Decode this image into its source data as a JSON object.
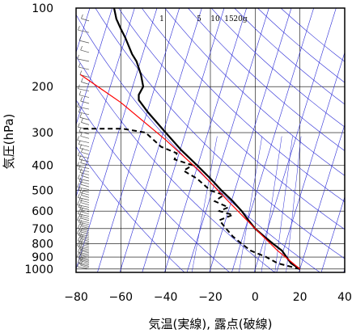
{
  "chart_data": {
    "type": "line",
    "title": "",
    "xlabel": "気温(実線), 露点(破線)",
    "ylabel": "気圧(hPa)",
    "xlim": [
      -80,
      40
    ],
    "ylim": [
      1030,
      100
    ],
    "y_scale": "log",
    "x_ticks": [
      -80,
      -60,
      -40,
      -20,
      0,
      20,
      40
    ],
    "x_tick_labels": [
      "−80",
      "−60",
      "−40",
      "−20",
      "0",
      "20",
      "40"
    ],
    "y_ticks": [
      100,
      200,
      300,
      400,
      500,
      600,
      700,
      800,
      900,
      1000
    ],
    "y_tick_labels": [
      "100",
      "200",
      "300",
      "400",
      "500",
      "600",
      "700",
      "800",
      "900",
      "1000"
    ],
    "grid": true,
    "mixing_ratio_labels": [
      "1",
      "5",
      "10",
      "15",
      "20g"
    ],
    "colors": {
      "temperature": "#000000",
      "dewpoint": "#000000",
      "parcel": "#ff0000",
      "adiabats": "#2b2bd6",
      "grid": "#000000",
      "wind_barbs": "#555555"
    },
    "series": [
      {
        "role": "temperature",
        "style": "solid",
        "points": [
          [
            20,
            1000
          ],
          [
            16,
            950
          ],
          [
            14,
            900
          ],
          [
            12,
            850
          ],
          [
            8,
            800
          ],
          [
            4,
            750
          ],
          [
            0,
            700
          ],
          [
            -3,
            650
          ],
          [
            -6,
            600
          ],
          [
            -10,
            550
          ],
          [
            -15,
            500
          ],
          [
            -20,
            450
          ],
          [
            -26,
            400
          ],
          [
            -33,
            350
          ],
          [
            -40,
            300
          ],
          [
            -48,
            250
          ],
          [
            -52,
            225
          ],
          [
            -52,
            215
          ],
          [
            -50,
            200
          ],
          [
            -51,
            180
          ],
          [
            -53,
            160
          ],
          [
            -55,
            150
          ],
          [
            -58,
            130
          ],
          [
            -60,
            120
          ],
          [
            -62,
            110
          ],
          [
            -63,
            100
          ]
        ]
      },
      {
        "role": "dewpoint",
        "style": "dashed",
        "points": [
          [
            20,
            1000
          ],
          [
            10,
            950
          ],
          [
            5,
            900
          ],
          [
            -2,
            850
          ],
          [
            -6,
            800
          ],
          [
            -10,
            750
          ],
          [
            -13,
            700
          ],
          [
            -16,
            650
          ],
          [
            -10,
            620
          ],
          [
            -16,
            600
          ],
          [
            -12,
            580
          ],
          [
            -18,
            550
          ],
          [
            -14,
            520
          ],
          [
            -20,
            500
          ],
          [
            -26,
            450
          ],
          [
            -32,
            420
          ],
          [
            -28,
            400
          ],
          [
            -36,
            380
          ],
          [
            -35,
            360
          ],
          [
            -42,
            340
          ],
          [
            -49,
            300
          ],
          [
            -59,
            290
          ],
          [
            -78,
            290
          ]
        ]
      },
      {
        "role": "parcel",
        "style": "solid",
        "points": [
          [
            20,
            1000
          ],
          [
            10,
            850
          ],
          [
            0,
            700
          ],
          [
            -12,
            550
          ],
          [
            -25,
            420
          ],
          [
            -40,
            320
          ],
          [
            -60,
            230
          ],
          [
            -78,
            180
          ]
        ]
      }
    ]
  }
}
